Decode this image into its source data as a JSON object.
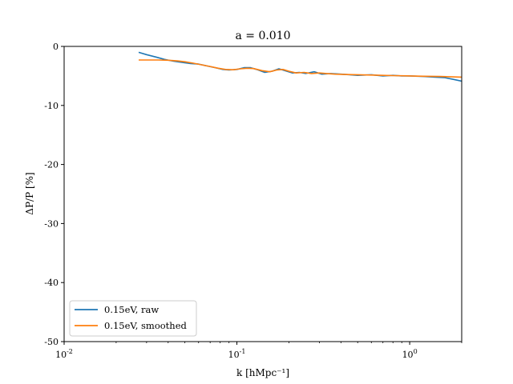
{
  "chart_data": {
    "type": "line",
    "title": "a = 0.010",
    "xlabel": "k [hMpc⁻¹]",
    "ylabel": "ΔP/P [%]",
    "xscale": "log",
    "xlim": [
      0.01,
      2.0
    ],
    "ylim": [
      -50,
      0
    ],
    "xticks": [
      {
        "value": 0.01,
        "base": "10",
        "exp": "-2"
      },
      {
        "value": 0.1,
        "base": "10",
        "exp": "-1"
      },
      {
        "value": 1,
        "base": "10",
        "exp": "0"
      }
    ],
    "yticks": [
      {
        "value": 0,
        "label": "0"
      },
      {
        "value": -10,
        "label": "-10"
      },
      {
        "value": -20,
        "label": "-20"
      },
      {
        "value": -30,
        "label": "-30"
      },
      {
        "value": -40,
        "label": "-40"
      },
      {
        "value": -50,
        "label": "-50"
      }
    ],
    "legend_position": "lower-left",
    "grid": false,
    "series": [
      {
        "name": "0.15eV, raw",
        "color": "#1f77b4",
        "x": [
          0.027,
          0.03,
          0.034,
          0.038,
          0.043,
          0.048,
          0.054,
          0.06,
          0.067,
          0.075,
          0.083,
          0.09,
          0.1,
          0.11,
          0.12,
          0.13,
          0.145,
          0.16,
          0.175,
          0.19,
          0.21,
          0.23,
          0.25,
          0.28,
          0.31,
          0.35,
          0.4,
          0.45,
          0.5,
          0.6,
          0.7,
          0.8,
          0.9,
          1.0,
          1.2,
          1.4,
          1.6,
          1.8,
          2.0
        ],
        "y": [
          -1.0,
          -1.4,
          -1.8,
          -2.2,
          -2.5,
          -2.7,
          -2.9,
          -3.0,
          -3.3,
          -3.6,
          -3.9,
          -4.0,
          -3.9,
          -3.6,
          -3.6,
          -3.9,
          -4.4,
          -4.2,
          -3.8,
          -4.1,
          -4.5,
          -4.4,
          -4.6,
          -4.3,
          -4.7,
          -4.6,
          -4.7,
          -4.8,
          -4.9,
          -4.8,
          -5.0,
          -4.9,
          -5.0,
          -5.0,
          -5.1,
          -5.2,
          -5.3,
          -5.6,
          -5.9
        ]
      },
      {
        "name": "0.15eV, smoothed",
        "color": "#ff7f0e",
        "x": [
          0.027,
          0.03,
          0.035,
          0.04,
          0.045,
          0.05,
          0.056,
          0.062,
          0.07,
          0.078,
          0.086,
          0.095,
          0.105,
          0.115,
          0.125,
          0.14,
          0.155,
          0.17,
          0.185,
          0.2,
          0.22,
          0.245,
          0.27,
          0.3,
          0.33,
          0.37,
          0.42,
          0.5,
          0.6,
          0.7,
          0.8,
          1.0,
          1.2,
          1.5,
          2.0
        ],
        "y": [
          -2.3,
          -2.3,
          -2.3,
          -2.35,
          -2.45,
          -2.6,
          -2.85,
          -3.1,
          -3.4,
          -3.7,
          -3.9,
          -3.95,
          -3.8,
          -3.7,
          -3.75,
          -4.1,
          -4.3,
          -4.0,
          -3.9,
          -4.2,
          -4.5,
          -4.4,
          -4.6,
          -4.5,
          -4.6,
          -4.7,
          -4.75,
          -4.8,
          -4.85,
          -4.9,
          -4.95,
          -5.0,
          -5.05,
          -5.1,
          -5.2
        ]
      }
    ]
  }
}
